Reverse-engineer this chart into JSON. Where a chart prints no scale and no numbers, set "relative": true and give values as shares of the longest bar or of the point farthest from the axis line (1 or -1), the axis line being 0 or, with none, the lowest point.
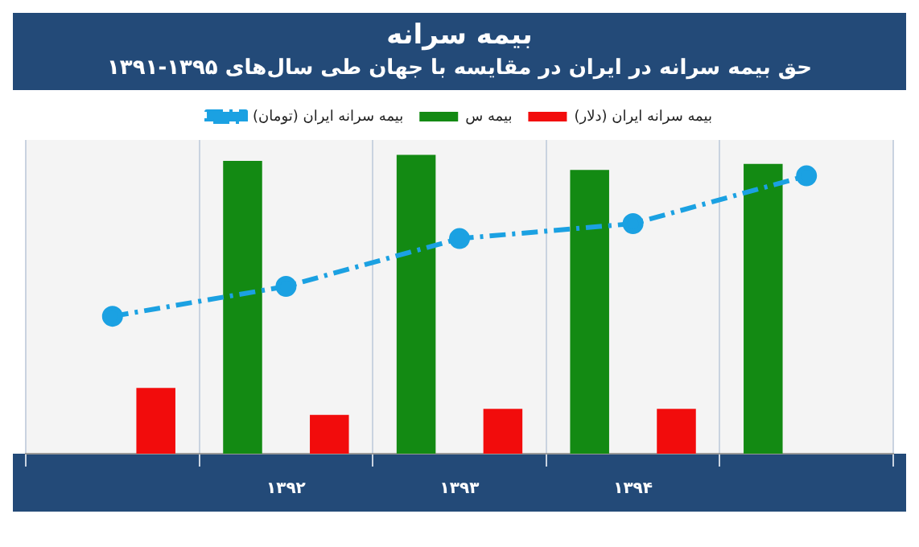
{
  "chart_data": {
    "type": "bar",
    "title": "بیمه سرانه",
    "subtitle": "حق بیمه سرانه در ایران در مقایسه با جهان طی سال‌های ۱۳۹۵-۱۳۹۱",
    "categories": [
      null,
      "۱۳۹۲",
      "۱۳۹۳",
      "۱۳۹۴",
      null
    ],
    "relative": true,
    "series": [
      {
        "name": "بیمه س",
        "color": "#138a13",
        "values": [
          null,
          0.98,
          1.0,
          0.95,
          0.97
        ]
      },
      {
        "name": "بیمه سرانه ایران (دلار)",
        "color": "#f20c0c",
        "values": [
          0.22,
          0.13,
          0.15,
          0.15,
          null
        ]
      },
      {
        "name": "بیمه سرانه ایران (تومان)",
        "type": "line",
        "color": "#1ba1e2",
        "values": [
          0.46,
          0.56,
          0.72,
          0.77,
          0.93
        ]
      }
    ],
    "grid": "x",
    "legend": "top",
    "marker": "circle",
    "line_style": "dashed"
  }
}
